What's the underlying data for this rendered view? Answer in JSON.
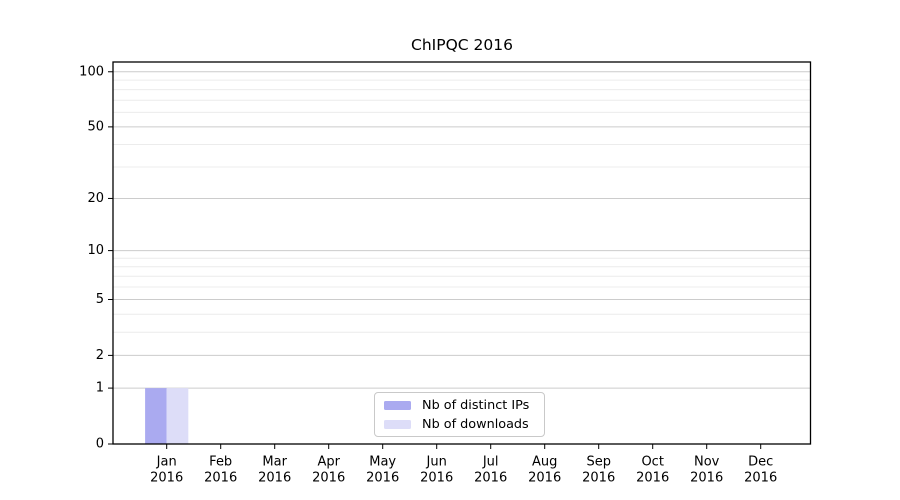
{
  "chart_data": {
    "type": "bar",
    "title": "ChIPQC 2016",
    "categories": [
      {
        "month": "Jan",
        "year": "2016"
      },
      {
        "month": "Feb",
        "year": "2016"
      },
      {
        "month": "Mar",
        "year": "2016"
      },
      {
        "month": "Apr",
        "year": "2016"
      },
      {
        "month": "May",
        "year": "2016"
      },
      {
        "month": "Jun",
        "year": "2016"
      },
      {
        "month": "Jul",
        "year": "2016"
      },
      {
        "month": "Aug",
        "year": "2016"
      },
      {
        "month": "Sep",
        "year": "2016"
      },
      {
        "month": "Oct",
        "year": "2016"
      },
      {
        "month": "Nov",
        "year": "2016"
      },
      {
        "month": "Dec",
        "year": "2016"
      }
    ],
    "series": [
      {
        "name": "Nb of distinct IPs",
        "color": "#aaaaf0",
        "values": [
          1,
          0,
          0,
          0,
          0,
          0,
          0,
          0,
          0,
          0,
          0,
          0
        ]
      },
      {
        "name": "Nb of downloads",
        "color": "#ddddf8",
        "values": [
          1,
          0,
          0,
          0,
          0,
          0,
          0,
          0,
          0,
          0,
          0,
          0
        ]
      }
    ],
    "xlabel": "",
    "ylabel": "",
    "yscale": "log1p",
    "ylim": [
      0,
      113
    ],
    "yticks": [
      0,
      1,
      2,
      5,
      10,
      20,
      50,
      100
    ],
    "minor_yticks": [
      3,
      4,
      6,
      7,
      8,
      9,
      30,
      40,
      60,
      70,
      80,
      90
    ],
    "grid": true,
    "legend_position": "bottom-center-inside",
    "colors": {
      "major_grid": "#cccccc",
      "minor_grid": "#ececec",
      "axis": "#000000",
      "background": "#ffffff"
    }
  }
}
